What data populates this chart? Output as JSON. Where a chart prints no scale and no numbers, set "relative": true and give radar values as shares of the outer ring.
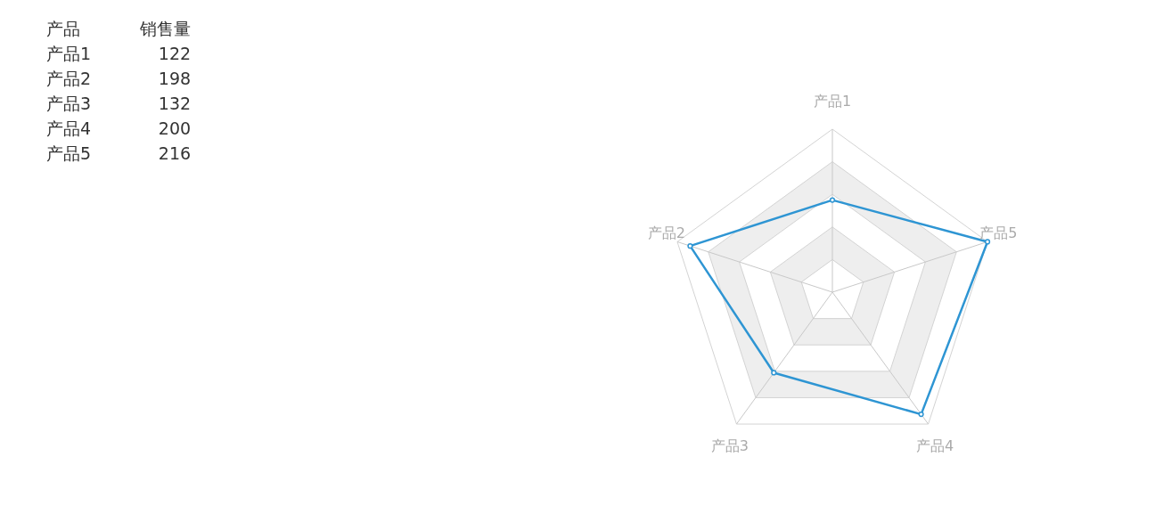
{
  "chart_data": [
    {
      "type": "other",
      "xlabel": "产品",
      "ylabel": "销售量",
      "categories": [
        "产品1",
        "产品2",
        "产品3",
        "产品4",
        "产品5"
      ],
      "values": [
        122,
        198,
        132,
        200,
        216
      ],
      "data_labels": true
    },
    {
      "type": "radar",
      "relative": true,
      "categories": [
        "产品1",
        "产品5",
        "产品4",
        "产品3",
        "产品2"
      ],
      "series": [
        {
          "color": "#2e95d3",
          "values": [
            0.565,
            1,
            0.926,
            0.611,
            0.917
          ]
        }
      ],
      "grid": true,
      "marker": "circle"
    }
  ]
}
